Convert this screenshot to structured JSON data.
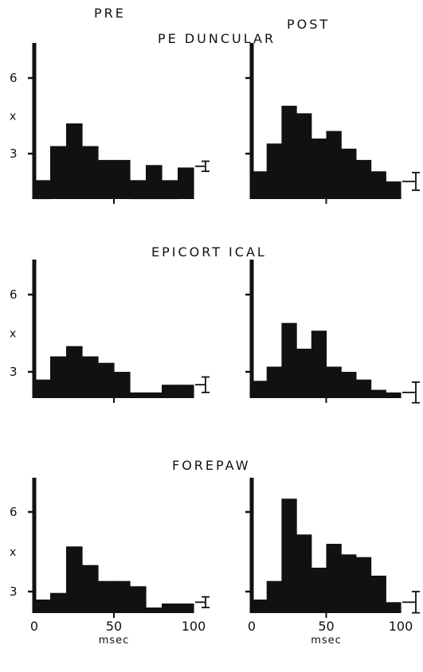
{
  "column_titles": [
    "PRE",
    "POST"
  ],
  "chart_data": [
    {
      "type": "bar",
      "row_title": "PE DUNCULAR",
      "ylabel": "x",
      "x_tick_labels": [
        "0",
        "50",
        "100"
      ],
      "xlabel": "msec",
      "ylim": [
        1.8,
        7.3
      ],
      "xlim": [
        0,
        100
      ],
      "panels": [
        {
          "column": "PRE",
          "bins": [
            [
              0,
              10,
              1.95
            ],
            [
              10,
              20,
              3.3
            ],
            [
              20,
              30,
              4.2
            ],
            [
              30,
              40,
              3.3
            ],
            [
              40,
              50,
              2.75
            ],
            [
              50,
              60,
              2.75
            ],
            [
              60,
              70,
              1.95
            ],
            [
              70,
              80,
              2.55
            ],
            [
              80,
              90,
              1.95
            ],
            [
              90,
              100,
              2.45
            ]
          ],
          "error_bar": {
            "mean": 2.5,
            "low": 2.3,
            "high": 2.7
          },
          "y_tick_labels": [
            "6",
            "3"
          ]
        },
        {
          "column": "POST",
          "bins": [
            [
              0,
              10,
              2.3
            ],
            [
              10,
              20,
              3.4
            ],
            [
              20,
              30,
              4.9
            ],
            [
              30,
              40,
              4.6
            ],
            [
              40,
              50,
              3.6
            ],
            [
              50,
              60,
              3.9
            ],
            [
              60,
              70,
              3.2
            ],
            [
              70,
              80,
              2.75
            ],
            [
              80,
              90,
              2.3
            ],
            [
              90,
              100,
              1.9
            ]
          ],
          "error_bar": {
            "mean": 1.9,
            "low": 1.55,
            "high": 2.25
          },
          "y_tick_labels": [
            "",
            ""
          ]
        }
      ]
    },
    {
      "type": "bar",
      "row_title": "EPICORT ICAL",
      "ylabel": "x",
      "x_tick_labels": [
        "0",
        "50",
        "100"
      ],
      "xlabel": "msec",
      "ylim": [
        2.0,
        7.1
      ],
      "xlim": [
        0,
        100
      ],
      "panels": [
        {
          "column": "PRE",
          "bins": [
            [
              0,
              10,
              2.7
            ],
            [
              10,
              20,
              3.6
            ],
            [
              20,
              30,
              4.0
            ],
            [
              30,
              40,
              3.6
            ],
            [
              40,
              50,
              3.35
            ],
            [
              50,
              60,
              3.0
            ],
            [
              60,
              70,
              2.2
            ],
            [
              70,
              80,
              2.2
            ],
            [
              80,
              90,
              2.5
            ],
            [
              90,
              100,
              2.5
            ]
          ],
          "error_bar": {
            "mean": 2.5,
            "low": 2.2,
            "high": 2.8
          },
          "y_tick_labels": [
            "6",
            "3"
          ]
        },
        {
          "column": "POST",
          "bins": [
            [
              0,
              10,
              2.65
            ],
            [
              10,
              20,
              3.2
            ],
            [
              20,
              30,
              4.9
            ],
            [
              30,
              40,
              3.9
            ],
            [
              40,
              50,
              4.6
            ],
            [
              50,
              60,
              3.2
            ],
            [
              60,
              70,
              3.0
            ],
            [
              70,
              80,
              2.7
            ],
            [
              80,
              90,
              2.3
            ],
            [
              90,
              100,
              2.2
            ]
          ],
          "error_bar": {
            "mean": 2.2,
            "low": 1.8,
            "high": 2.6
          },
          "y_tick_labels": [
            "",
            ""
          ]
        }
      ]
    },
    {
      "type": "bar",
      "row_title": "FOREPAW",
      "ylabel": "x",
      "x_tick_labels": [
        "0",
        "50",
        "100"
      ],
      "xlabel": "msec",
      "ylim": [
        2.1,
        7.3
      ],
      "xlim": [
        0,
        100
      ],
      "panels": [
        {
          "column": "PRE",
          "bins": [
            [
              0,
              10,
              2.7
            ],
            [
              10,
              20,
              2.95
            ],
            [
              20,
              30,
              4.7
            ],
            [
              30,
              40,
              4.0
            ],
            [
              40,
              50,
              3.4
            ],
            [
              50,
              60,
              3.4
            ],
            [
              60,
              70,
              3.2
            ],
            [
              70,
              80,
              2.4
            ],
            [
              80,
              90,
              2.55
            ],
            [
              90,
              100,
              2.55
            ]
          ],
          "error_bar": {
            "mean": 2.6,
            "low": 2.4,
            "high": 2.8
          },
          "y_tick_labels": [
            "6",
            "3"
          ]
        },
        {
          "column": "POST",
          "bins": [
            [
              0,
              10,
              2.7
            ],
            [
              10,
              20,
              3.4
            ],
            [
              20,
              30,
              6.5
            ],
            [
              30,
              40,
              5.15
            ],
            [
              40,
              50,
              3.9
            ],
            [
              50,
              60,
              4.8
            ],
            [
              60,
              70,
              4.4
            ],
            [
              70,
              80,
              4.3
            ],
            [
              80,
              90,
              3.6
            ],
            [
              90,
              100,
              2.6
            ]
          ],
          "error_bar": {
            "mean": 2.6,
            "low": 2.2,
            "high": 3.0
          },
          "y_tick_labels": [
            "",
            ""
          ]
        }
      ]
    }
  ]
}
